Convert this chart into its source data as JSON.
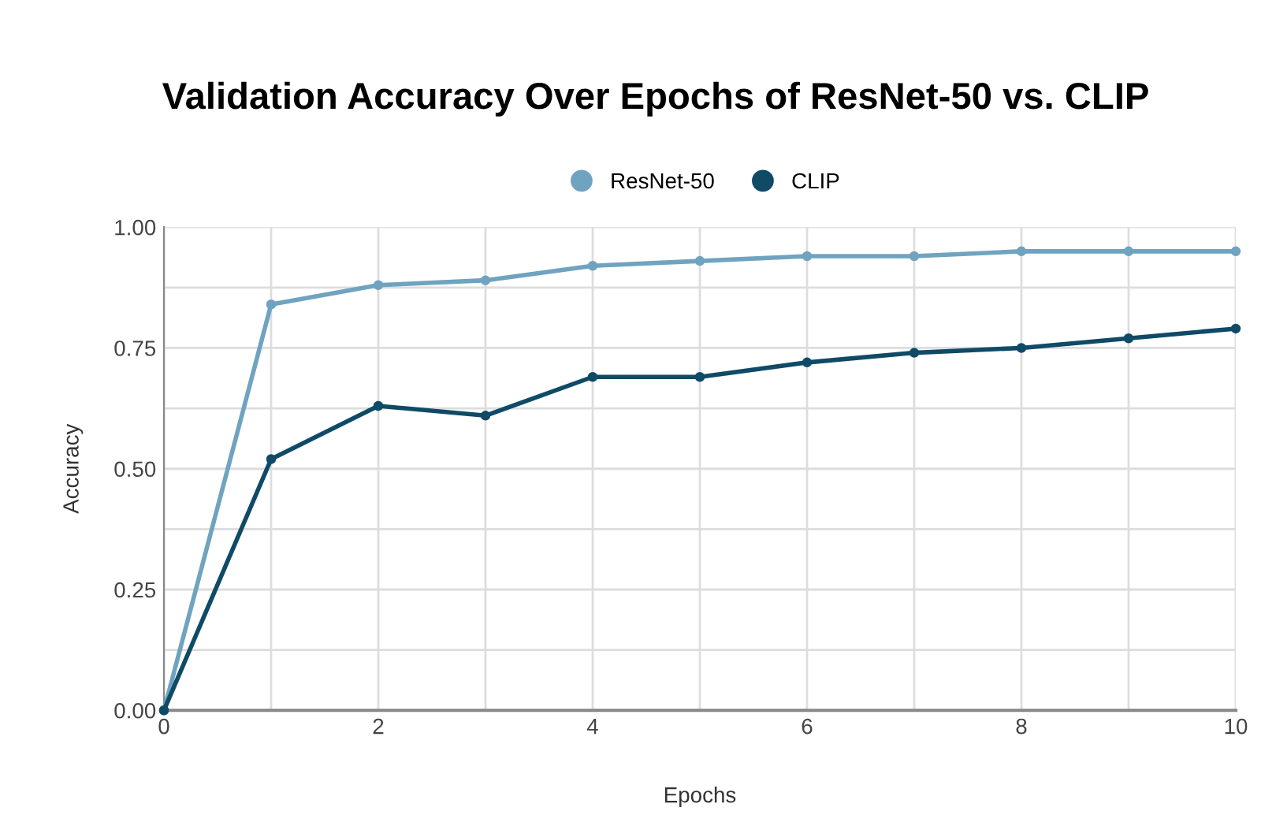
{
  "chart_data": {
    "type": "line",
    "title": "Validation Accuracy Over Epochs of ResNet-50 vs. CLIP",
    "xlabel": "Epochs",
    "ylabel": "Accuracy",
    "x": [
      0,
      1,
      2,
      3,
      4,
      5,
      6,
      7,
      8,
      9,
      10
    ],
    "series": [
      {
        "name": "ResNet-50",
        "color": "#6fa3c0",
        "values": [
          0,
          0.84,
          0.88,
          0.89,
          0.92,
          0.93,
          0.94,
          0.94,
          0.95,
          0.95,
          0.95
        ]
      },
      {
        "name": "CLIP",
        "color": "#0f4a66",
        "values": [
          0,
          0.52,
          0.63,
          0.61,
          0.69,
          0.69,
          0.72,
          0.74,
          0.75,
          0.77,
          0.79
        ]
      }
    ],
    "xlim": [
      0,
      10
    ],
    "ylim": [
      0,
      1
    ],
    "xticks": [
      0,
      {
        "value": 1,
        "label": null
      },
      2,
      {
        "value": 3,
        "label": null
      },
      4,
      {
        "value": 5,
        "label": null
      },
      6,
      {
        "value": 7,
        "label": null
      },
      8,
      {
        "value": 9,
        "label": null
      },
      10
    ],
    "yticks": [
      {
        "value": 0,
        "label": "0.00"
      },
      {
        "value": 0.125,
        "label": null
      },
      {
        "value": 0.25,
        "label": "0.25"
      },
      {
        "value": 0.375,
        "label": null
      },
      {
        "value": 0.5,
        "label": "0.50"
      },
      {
        "value": 0.625,
        "label": null
      },
      {
        "value": 0.75,
        "label": "0.75"
      },
      {
        "value": 0.875,
        "label": null
      },
      {
        "value": 1,
        "label": "1.00"
      }
    ],
    "grid": true,
    "legend": "top",
    "marker": "circle",
    "line_style": "solid"
  }
}
